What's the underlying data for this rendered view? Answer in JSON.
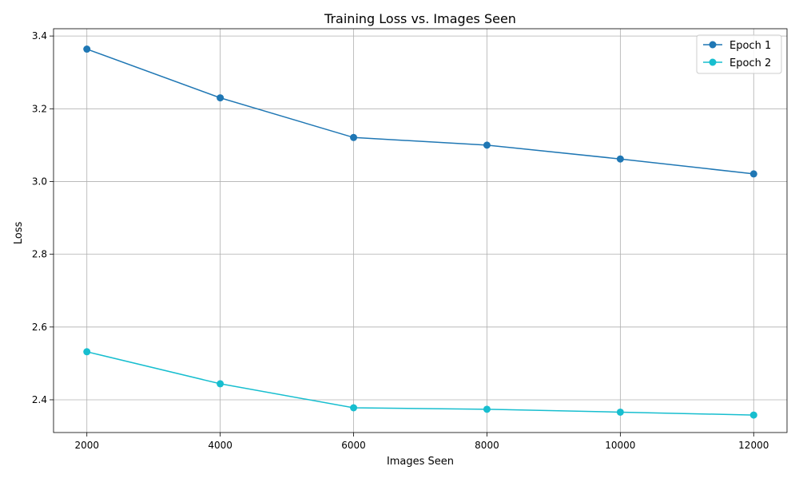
{
  "chart_data": {
    "type": "line",
    "title": "Training Loss vs. Images Seen",
    "xlabel": "Images Seen",
    "ylabel": "Loss",
    "x": [
      2000,
      4000,
      6000,
      8000,
      10000,
      12000
    ],
    "xlim": [
      1500,
      12500
    ],
    "ylim": [
      2.31,
      3.42
    ],
    "xticks": [
      2000,
      4000,
      6000,
      8000,
      10000,
      12000
    ],
    "yticks": [
      2.4,
      2.6,
      2.8,
      3.0,
      3.2,
      3.4
    ],
    "ytick_labels": [
      "2.4",
      "2.6",
      "2.8",
      "3.0",
      "3.2",
      "3.4"
    ],
    "grid": true,
    "legend_position": "top-right",
    "series": [
      {
        "name": "Epoch 1",
        "color": "#1f77b4",
        "marker": "circle",
        "values": [
          3.364,
          3.23,
          3.121,
          3.1,
          3.062,
          3.021
        ]
      },
      {
        "name": "Epoch 2",
        "color": "#17becf",
        "marker": "circle",
        "values": [
          2.532,
          2.444,
          2.378,
          2.374,
          2.366,
          2.358
        ]
      }
    ]
  }
}
